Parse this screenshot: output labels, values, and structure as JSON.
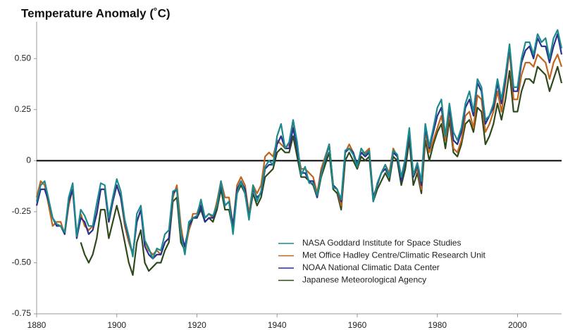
{
  "chart_data": {
    "type": "line",
    "title": "Temperature Anomaly (˚C)",
    "x": [
      1880,
      1881,
      1882,
      1883,
      1884,
      1885,
      1886,
      1887,
      1888,
      1889,
      1890,
      1891,
      1892,
      1893,
      1894,
      1895,
      1896,
      1897,
      1898,
      1899,
      1900,
      1901,
      1902,
      1903,
      1904,
      1905,
      1906,
      1907,
      1908,
      1909,
      1910,
      1911,
      1912,
      1913,
      1914,
      1915,
      1916,
      1917,
      1918,
      1919,
      1920,
      1921,
      1922,
      1923,
      1924,
      1925,
      1926,
      1927,
      1928,
      1929,
      1930,
      1931,
      1932,
      1933,
      1934,
      1935,
      1936,
      1937,
      1938,
      1939,
      1940,
      1941,
      1942,
      1943,
      1944,
      1945,
      1946,
      1947,
      1948,
      1949,
      1950,
      1951,
      1952,
      1953,
      1954,
      1955,
      1956,
      1957,
      1958,
      1959,
      1960,
      1961,
      1962,
      1963,
      1964,
      1965,
      1966,
      1967,
      1968,
      1969,
      1970,
      1971,
      1972,
      1973,
      1974,
      1975,
      1976,
      1977,
      1978,
      1979,
      1980,
      1981,
      1982,
      1983,
      1984,
      1985,
      1986,
      1987,
      1988,
      1989,
      1990,
      1991,
      1992,
      1993,
      1994,
      1995,
      1996,
      1997,
      1998,
      1999,
      2000,
      2001,
      2002,
      2003,
      2004,
      2005,
      2006,
      2007,
      2008,
      2009,
      2010,
      2011
    ],
    "series": [
      {
        "name": "NASA Goddard Institute for Space Studies",
        "color": "#1b8a8c",
        "values": [
          -0.2,
          -0.12,
          -0.1,
          -0.19,
          -0.28,
          -0.31,
          -0.32,
          -0.35,
          -0.18,
          -0.11,
          -0.37,
          -0.24,
          -0.27,
          -0.32,
          -0.32,
          -0.21,
          -0.11,
          -0.12,
          -0.28,
          -0.18,
          -0.09,
          -0.15,
          -0.29,
          -0.37,
          -0.47,
          -0.26,
          -0.22,
          -0.39,
          -0.43,
          -0.48,
          -0.43,
          -0.44,
          -0.36,
          -0.34,
          -0.15,
          -0.14,
          -0.36,
          -0.46,
          -0.3,
          -0.28,
          -0.27,
          -0.19,
          -0.28,
          -0.26,
          -0.27,
          -0.22,
          -0.1,
          -0.22,
          -0.2,
          -0.36,
          -0.16,
          -0.1,
          -0.16,
          -0.29,
          -0.12,
          -0.2,
          -0.15,
          -0.03,
          0.0,
          -0.02,
          0.12,
          0.18,
          0.06,
          0.09,
          0.2,
          0.09,
          -0.07,
          -0.03,
          -0.11,
          -0.11,
          -0.17,
          -0.07,
          0.01,
          0.08,
          -0.13,
          -0.14,
          -0.19,
          0.05,
          0.06,
          0.03,
          -0.03,
          0.06,
          0.03,
          0.05,
          -0.2,
          -0.11,
          -0.06,
          -0.02,
          -0.08,
          0.05,
          0.03,
          -0.08,
          0.01,
          0.16,
          -0.07,
          -0.01,
          -0.1,
          0.18,
          0.07,
          0.16,
          0.26,
          0.3,
          0.12,
          0.28,
          0.14,
          0.1,
          0.16,
          0.28,
          0.34,
          0.24,
          0.4,
          0.36,
          0.2,
          0.22,
          0.28,
          0.4,
          0.3,
          0.42,
          0.57,
          0.36,
          0.36,
          0.5,
          0.58,
          0.58,
          0.52,
          0.62,
          0.58,
          0.6,
          0.5,
          0.6,
          0.64,
          0.55
        ]
      },
      {
        "name": "Met Office Hadley Centre/Climatic Research Unit",
        "color": "#c0641e",
        "values": [
          -0.18,
          -0.1,
          -0.12,
          -0.22,
          -0.32,
          -0.3,
          -0.3,
          -0.36,
          -0.22,
          -0.14,
          -0.36,
          -0.26,
          -0.32,
          -0.34,
          -0.32,
          -0.26,
          -0.14,
          -0.14,
          -0.3,
          -0.2,
          -0.12,
          -0.18,
          -0.32,
          -0.4,
          -0.46,
          -0.3,
          -0.24,
          -0.4,
          -0.44,
          -0.46,
          -0.44,
          -0.46,
          -0.4,
          -0.38,
          -0.18,
          -0.12,
          -0.32,
          -0.44,
          -0.34,
          -0.26,
          -0.26,
          -0.2,
          -0.28,
          -0.26,
          -0.28,
          -0.2,
          -0.1,
          -0.18,
          -0.18,
          -0.32,
          -0.12,
          -0.08,
          -0.12,
          -0.26,
          -0.12,
          -0.16,
          -0.12,
          0.02,
          0.04,
          0.02,
          0.1,
          0.08,
          0.06,
          0.08,
          0.18,
          0.06,
          -0.04,
          -0.04,
          -0.06,
          -0.08,
          -0.16,
          -0.04,
          0.02,
          0.08,
          -0.12,
          -0.14,
          -0.22,
          0.04,
          0.08,
          0.04,
          -0.02,
          0.04,
          0.04,
          0.06,
          -0.18,
          -0.12,
          -0.06,
          -0.02,
          -0.06,
          0.06,
          0.02,
          -0.08,
          0.0,
          0.14,
          -0.08,
          -0.04,
          -0.14,
          0.14,
          0.04,
          0.1,
          0.16,
          0.22,
          0.1,
          0.24,
          0.06,
          0.04,
          0.1,
          0.22,
          0.24,
          0.16,
          0.32,
          0.3,
          0.14,
          0.18,
          0.24,
          0.34,
          0.24,
          0.38,
          0.54,
          0.3,
          0.3,
          0.42,
          0.48,
          0.48,
          0.46,
          0.52,
          0.5,
          0.48,
          0.4,
          0.48,
          0.52,
          0.46
        ]
      },
      {
        "name": "NOAA National Climatic Data Center",
        "color": "#2a2f8f",
        "values": [
          -0.22,
          -0.14,
          -0.14,
          -0.2,
          -0.28,
          -0.32,
          -0.32,
          -0.36,
          -0.2,
          -0.14,
          -0.38,
          -0.28,
          -0.3,
          -0.36,
          -0.34,
          -0.26,
          -0.14,
          -0.14,
          -0.3,
          -0.2,
          -0.12,
          -0.18,
          -0.3,
          -0.38,
          -0.46,
          -0.3,
          -0.24,
          -0.42,
          -0.46,
          -0.48,
          -0.46,
          -0.46,
          -0.4,
          -0.38,
          -0.16,
          -0.14,
          -0.36,
          -0.42,
          -0.32,
          -0.28,
          -0.28,
          -0.22,
          -0.3,
          -0.28,
          -0.28,
          -0.22,
          -0.12,
          -0.22,
          -0.2,
          -0.32,
          -0.14,
          -0.1,
          -0.14,
          -0.28,
          -0.14,
          -0.18,
          -0.16,
          -0.04,
          -0.02,
          -0.02,
          0.08,
          0.12,
          0.06,
          0.06,
          0.16,
          0.06,
          -0.06,
          -0.06,
          -0.1,
          -0.1,
          -0.18,
          -0.06,
          0.0,
          0.08,
          -0.12,
          -0.14,
          -0.2,
          0.04,
          0.06,
          0.04,
          -0.02,
          0.04,
          0.02,
          0.04,
          -0.18,
          -0.12,
          -0.06,
          -0.04,
          -0.08,
          0.04,
          0.02,
          -0.1,
          0.0,
          0.14,
          -0.08,
          -0.02,
          -0.12,
          0.16,
          0.06,
          0.14,
          0.22,
          0.26,
          0.12,
          0.26,
          0.1,
          0.08,
          0.14,
          0.26,
          0.3,
          0.22,
          0.38,
          0.34,
          0.18,
          0.22,
          0.26,
          0.38,
          0.28,
          0.4,
          0.56,
          0.34,
          0.34,
          0.48,
          0.54,
          0.56,
          0.5,
          0.6,
          0.56,
          0.56,
          0.48,
          0.56,
          0.62,
          0.52
        ]
      },
      {
        "name": "Japanese Meteorological Agency",
        "color": "#2e4a1c",
        "values": [
          null,
          null,
          null,
          null,
          null,
          null,
          null,
          null,
          null,
          null,
          null,
          -0.4,
          -0.46,
          -0.5,
          -0.46,
          -0.38,
          -0.24,
          -0.24,
          -0.38,
          -0.3,
          -0.22,
          -0.3,
          -0.4,
          -0.5,
          -0.56,
          -0.4,
          -0.34,
          -0.5,
          -0.54,
          -0.52,
          -0.5,
          -0.5,
          -0.44,
          -0.4,
          -0.2,
          -0.18,
          -0.4,
          -0.44,
          -0.34,
          -0.28,
          -0.28,
          -0.24,
          -0.3,
          -0.28,
          -0.3,
          -0.24,
          -0.14,
          -0.24,
          -0.24,
          -0.34,
          -0.16,
          -0.12,
          -0.16,
          -0.28,
          -0.16,
          -0.22,
          -0.18,
          -0.08,
          -0.06,
          -0.04,
          0.04,
          0.06,
          0.04,
          0.04,
          0.12,
          0.02,
          -0.08,
          -0.08,
          -0.1,
          -0.12,
          -0.18,
          -0.08,
          -0.02,
          0.04,
          -0.14,
          -0.16,
          -0.24,
          0.0,
          0.04,
          0.0,
          -0.04,
          0.02,
          0.0,
          0.02,
          -0.2,
          -0.14,
          -0.1,
          -0.06,
          -0.1,
          0.02,
          0.0,
          -0.12,
          -0.04,
          0.1,
          -0.12,
          -0.06,
          -0.16,
          0.1,
          0.0,
          0.08,
          0.14,
          0.18,
          0.06,
          0.2,
          0.04,
          0.02,
          0.08,
          0.18,
          0.2,
          0.14,
          0.26,
          0.24,
          0.08,
          0.12,
          0.18,
          0.28,
          0.2,
          0.3,
          0.44,
          0.24,
          0.24,
          0.34,
          0.4,
          0.4,
          0.38,
          0.46,
          0.44,
          0.42,
          0.34,
          0.4,
          0.46,
          0.38
        ]
      }
    ],
    "xlim": [
      1880,
      2011
    ],
    "xticks": [
      1880,
      1900,
      1920,
      1940,
      1960,
      1980,
      2000
    ],
    "ylim": [
      -0.75,
      0.68
    ],
    "yticks": [
      {
        "value": 0.5,
        "label": "0.50"
      },
      {
        "value": 0.25,
        "label": "0.25"
      },
      0,
      {
        "value": -0.25,
        "label": "-0.25"
      },
      {
        "value": -0.5,
        "label": "-0.50"
      },
      {
        "value": -0.75,
        "label": "-0.75"
      }
    ],
    "zero_line": true,
    "legend": "bottom-center"
  }
}
